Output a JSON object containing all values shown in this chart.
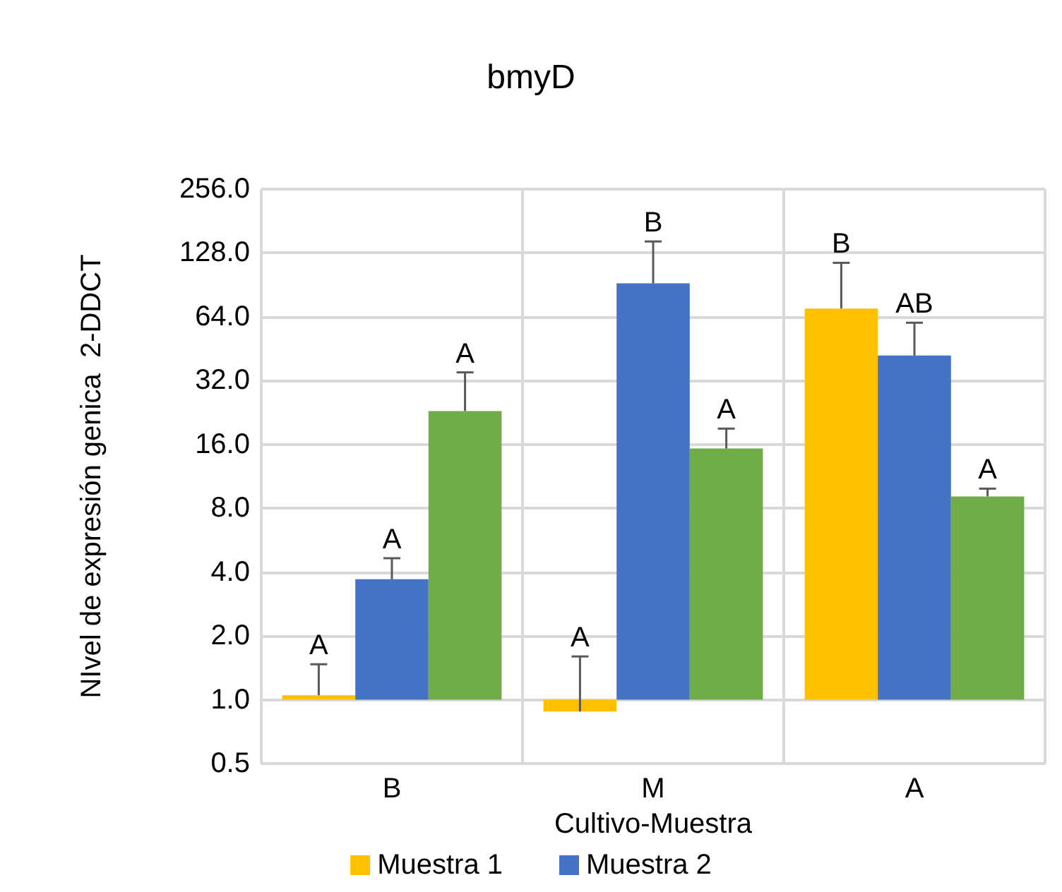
{
  "chart_data": {
    "type": "bar",
    "title": "bmyD",
    "xlabel": "Cultivo-Muestra",
    "ylabel": "NIvel de expresión genica  2-DDCT",
    "categories": [
      "B",
      "M",
      "A"
    ],
    "series": [
      {
        "name": "Muestra 1",
        "color": "#ffc000",
        "base": [
          1,
          1,
          1
        ],
        "values": [
          0.05,
          -0.12,
          69
        ],
        "errors": [
          [
            1.05,
            1.47
          ],
          [
            0.88,
            1.6
          ],
          [
            70,
            115
          ]
        ],
        "value_labels": [
          "A",
          "A",
          "B"
        ]
      },
      {
        "name": "Muestra 2",
        "color": "#4472c4",
        "base": [
          1,
          1,
          1
        ],
        "values": [
          2.7,
          91,
          41
        ],
        "errors": [
          [
            3.7,
            4.65
          ],
          [
            92,
            145
          ],
          [
            42,
            60
          ]
        ],
        "value_labels": [
          "A",
          "B",
          "AB"
        ]
      },
      {
        "color": "#70ad47",
        "base": [
          1,
          1,
          1
        ],
        "values": [
          22,
          14.3,
          8.1
        ],
        "errors": [
          [
            23,
            35
          ],
          [
            15.3,
            19
          ],
          [
            9.1,
            9.9
          ]
        ],
        "value_labels": [
          "A",
          "A",
          "A"
        ]
      }
    ],
    "log": "y",
    "ylim": [
      0.5,
      256
    ],
    "yticks": [
      {
        "value": 0.5,
        "label": "0.5"
      },
      {
        "value": 1,
        "label": "1.0"
      },
      {
        "value": 2,
        "label": "2.0"
      },
      {
        "value": 4,
        "label": "4.0"
      },
      {
        "value": 8,
        "label": "8.0"
      },
      {
        "value": 16,
        "label": "16.0"
      },
      {
        "value": 32,
        "label": "32.0"
      },
      {
        "value": 64,
        "label": "64.0"
      },
      {
        "value": 128,
        "label": "128.0"
      },
      {
        "value": 256,
        "label": "256.0"
      }
    ],
    "grid": true,
    "legend": "bottom"
  }
}
